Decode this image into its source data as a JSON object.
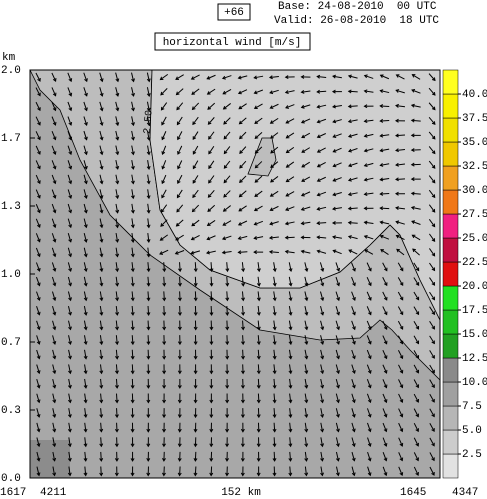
{
  "chart_data": {
    "type": "cross-section",
    "run_label": "+66",
    "base": "Base: 24-08-2010  00 UTC",
    "valid": "Valid: 26-08-2010  18 UTC",
    "title": "horizontal wind [m/s]",
    "y_label": "km",
    "ylim": [
      0,
      2
    ],
    "yticks": [
      {
        "value": 0,
        "label": "0.0"
      },
      {
        "value": 0.3333,
        "label": "0.3"
      },
      {
        "value": 0.6667,
        "label": "0.7"
      },
      {
        "value": 1,
        "label": "1.0"
      },
      {
        "value": 1.3333,
        "label": "1.3"
      },
      {
        "value": 1.6667,
        "label": "1.7"
      },
      {
        "value": 2,
        "label": "2.0"
      }
    ],
    "x_labels": [
      "1617",
      "4211",
      "152 km",
      "1645",
      "4347"
    ],
    "contour_labels": [
      "2.50"
    ],
    "colorbar": {
      "lim": [
        0,
        42.5
      ],
      "ticks": [
        2.5,
        {
          "value": 5,
          "label": "5.0"
        },
        7.5,
        {
          "value": 10,
          "label": "10.0"
        },
        12.5,
        {
          "value": 15,
          "label": "15.0"
        },
        17.5,
        {
          "value": 20,
          "label": "20.0"
        },
        22.5,
        {
          "value": 25,
          "label": "25.0"
        },
        27.5,
        {
          "value": 30,
          "label": "30.0"
        },
        32.5,
        {
          "value": 35,
          "label": "35.0"
        },
        37.5,
        {
          "value": 40,
          "label": "40.0"
        }
      ],
      "colors": [
        "#e2e2e2",
        "#cccccc",
        "#b6b6b6",
        "#a0a0a0",
        "#8a8a8a",
        "#22a022",
        "#22c022",
        "#22e022",
        "#e01010",
        "#c01040",
        "#f02080",
        "#f07818",
        "#f0a020",
        "#f0c800",
        "#f0e000",
        "#f8f000",
        "#ffff20"
      ]
    }
  }
}
